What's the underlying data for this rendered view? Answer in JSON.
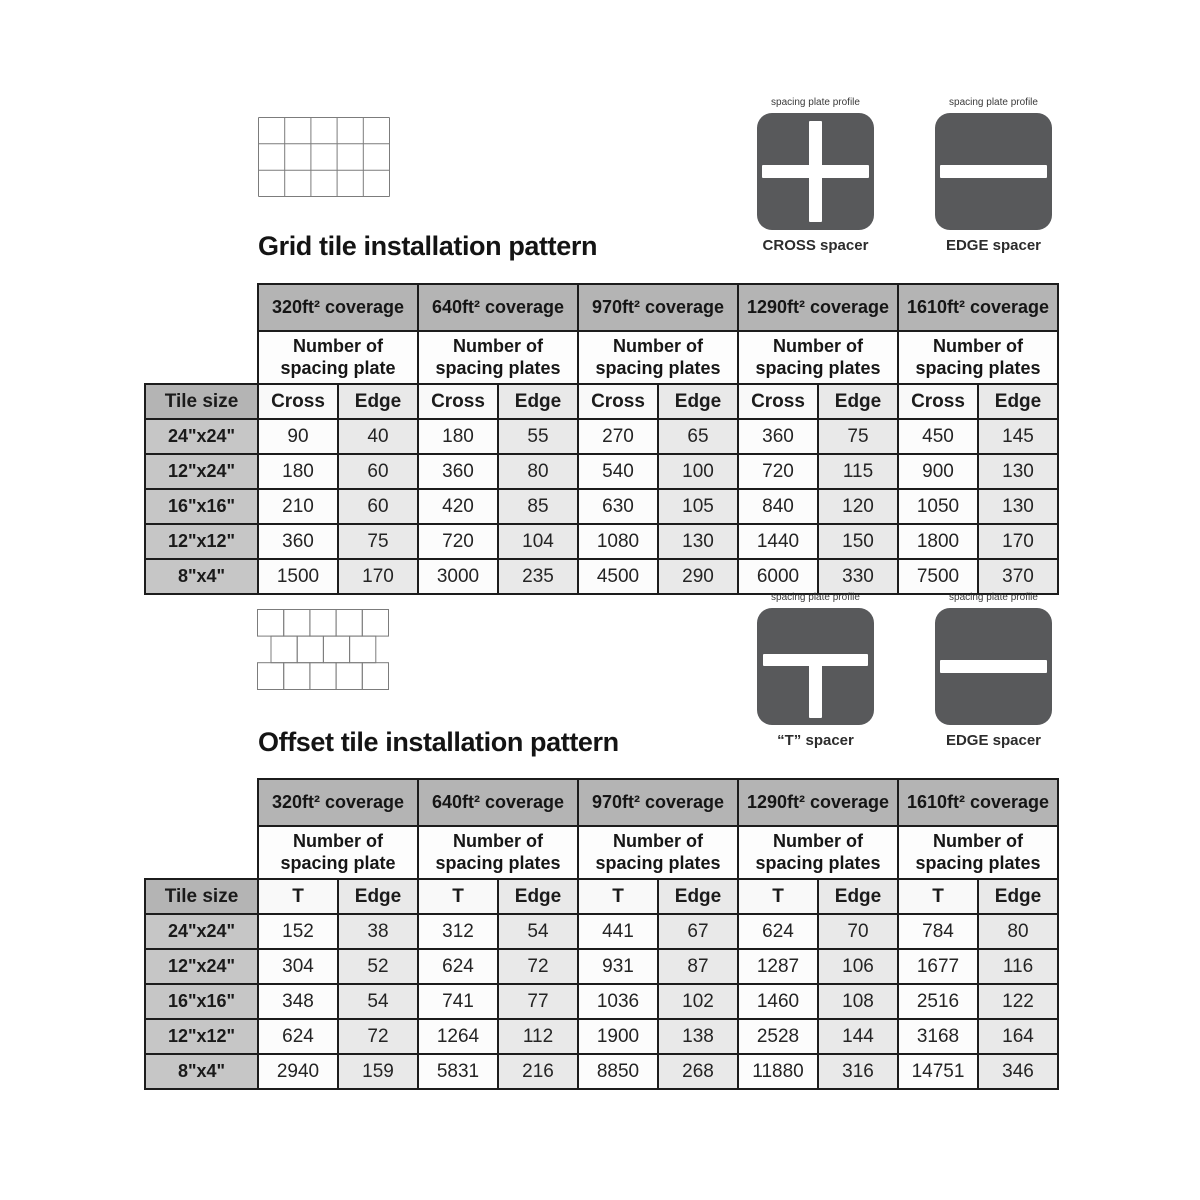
{
  "colors": {
    "header_gray": "#b4b4b4",
    "tile_label_gray": "#c6c6c6",
    "edge_column_gray": "#e9e9e9",
    "spacer_icon_gray": "#58595b",
    "table_border": "#1c1c1c"
  },
  "sections": [
    {
      "title": "Grid tile installation pattern",
      "pattern": "grid",
      "spacers": [
        {
          "profile_label": "spacing plate profile",
          "caption": "CROSS spacer",
          "shape": "cross"
        },
        {
          "profile_label": "spacing plate profile",
          "caption": "EDGE spacer",
          "shape": "edge"
        }
      ],
      "table": {
        "tile_size_header": "Tile size",
        "coverage_headers": [
          "320ft² coverage",
          "640ft² coverage",
          "970ft² coverage",
          "1290ft² coverage",
          "1610ft² coverage"
        ],
        "subheaders": [
          "Number of\nspacing plate",
          "Number of\nspacing plates",
          "Number of\nspacing plates",
          "Number of\nspacing plates",
          "Number of\nspacing plates"
        ],
        "pair_headers": [
          "Cross",
          "Edge"
        ],
        "rows": [
          {
            "tile": "24\"x24\"",
            "values": [
              90,
              40,
              180,
              55,
              270,
              65,
              360,
              75,
              450,
              145
            ]
          },
          {
            "tile": "12\"x24\"",
            "values": [
              180,
              60,
              360,
              80,
              540,
              100,
              720,
              115,
              900,
              130
            ]
          },
          {
            "tile": "16\"x16\"",
            "values": [
              210,
              60,
              420,
              85,
              630,
              105,
              840,
              120,
              1050,
              130
            ]
          },
          {
            "tile": "12\"x12\"",
            "values": [
              360,
              75,
              720,
              104,
              1080,
              130,
              1440,
              150,
              1800,
              170
            ]
          },
          {
            "tile": "8\"x4\"",
            "values": [
              1500,
              170,
              3000,
              235,
              4500,
              290,
              6000,
              330,
              7500,
              370
            ]
          }
        ]
      }
    },
    {
      "title": "Offset tile installation pattern",
      "pattern": "offset",
      "spacers": [
        {
          "profile_label": "spacing plate profile",
          "caption": "“T” spacer",
          "shape": "t"
        },
        {
          "profile_label": "spacing plate profile",
          "caption": "EDGE spacer",
          "shape": "edge"
        }
      ],
      "table": {
        "tile_size_header": "Tile size",
        "coverage_headers": [
          "320ft² coverage",
          "640ft² coverage",
          "970ft² coverage",
          "1290ft² coverage",
          "1610ft² coverage"
        ],
        "subheaders": [
          "Number of\nspacing plate",
          "Number of\nspacing plates",
          "Number of\nspacing plates",
          "Number of\nspacing plates",
          "Number of\nspacing plates"
        ],
        "pair_headers": [
          "T",
          "Edge"
        ],
        "rows": [
          {
            "tile": "24\"x24\"",
            "values": [
              152,
              38,
              312,
              54,
              441,
              67,
              624,
              70,
              784,
              80
            ]
          },
          {
            "tile": "12\"x24\"",
            "values": [
              304,
              52,
              624,
              72,
              931,
              87,
              1287,
              106,
              1677,
              116
            ]
          },
          {
            "tile": "16\"x16\"",
            "values": [
              348,
              54,
              741,
              77,
              1036,
              102,
              1460,
              108,
              2516,
              122
            ]
          },
          {
            "tile": "12\"x12\"",
            "values": [
              624,
              72,
              1264,
              112,
              1900,
              138,
              2528,
              144,
              3168,
              164
            ]
          },
          {
            "tile": "8\"x4\"",
            "values": [
              2940,
              159,
              5831,
              216,
              8850,
              268,
              11880,
              316,
              14751,
              346
            ]
          }
        ]
      }
    }
  ]
}
